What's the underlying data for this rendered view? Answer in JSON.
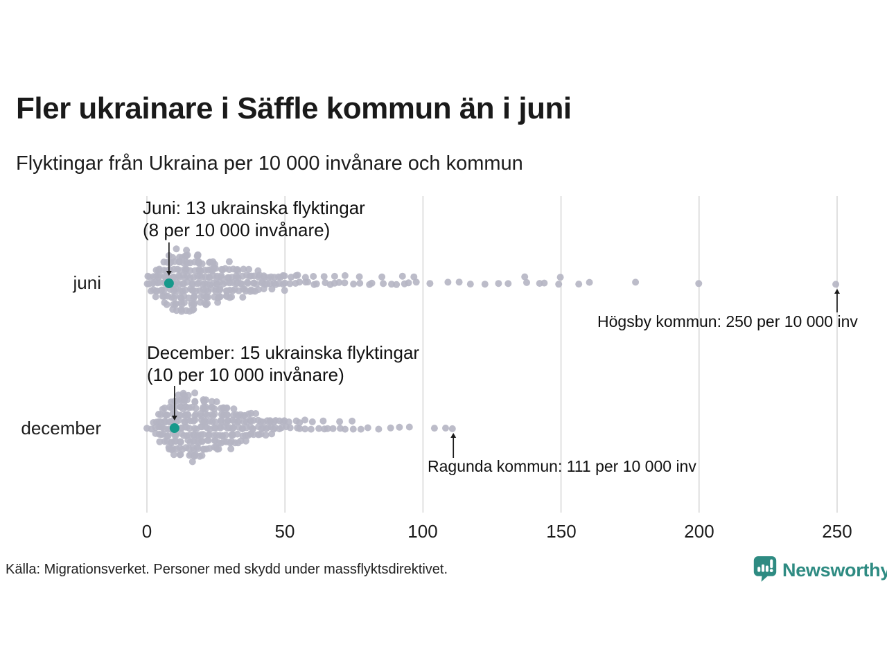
{
  "title": "Fler ukrainare i Säffle kommun än i juni",
  "subtitle": "Flyktingar från Ukraina per 10 000 invånare och kommun",
  "source": "Källa: Migrationsverket. Personer med skydd under massflyktsdirektivet.",
  "logo": {
    "text": "Newsworthy",
    "icon": "newsworthy-speech-bubble-bar-chart-icon",
    "color": "#2e8b82"
  },
  "colors": {
    "dot": "#b5b5c3",
    "highlight": "#17998b",
    "gridline": "#d8d8d8",
    "arrow": "#1a1a1a",
    "text": "#1a1a1a"
  },
  "chart_data": {
    "type": "beeswarm",
    "title": "Fler ukrainare i Säffle kommun än i juni",
    "subtitle": "Flyktingar från Ukraina per 10 000 invånare och kommun",
    "xlabel": "",
    "ylabel": "",
    "xlim": [
      0,
      250
    ],
    "x_ticks": [
      0,
      50,
      100,
      150,
      200,
      250
    ],
    "grid": "vertical",
    "unit": "flyktingar per 10 000 invånare",
    "rows": [
      {
        "label": "juni",
        "annotation": {
          "line1": "Juni: 13 ukrainska flyktingar",
          "line2": "(8 per 10 000 invånare)"
        },
        "highlight": {
          "name": "Säffle kommun",
          "value": 8,
          "refugee_count": 13
        },
        "max_annotation": {
          "text": "Högsby kommun: 250 per 10 000 inv",
          "value": 250
        },
        "bins": [
          [
            0,
            2
          ],
          [
            1,
            3
          ],
          [
            2,
            3
          ],
          [
            3,
            4
          ],
          [
            4,
            5
          ],
          [
            5,
            5
          ],
          [
            6,
            6
          ],
          [
            7,
            7
          ],
          [
            8,
            7
          ],
          [
            9,
            8
          ],
          [
            10,
            9
          ],
          [
            11,
            9
          ],
          [
            12,
            10
          ],
          [
            13,
            9
          ],
          [
            14,
            9
          ],
          [
            15,
            10
          ],
          [
            16,
            9
          ],
          [
            17,
            8
          ],
          [
            18,
            9
          ],
          [
            19,
            8
          ],
          [
            20,
            8
          ],
          [
            21,
            7
          ],
          [
            22,
            7
          ],
          [
            23,
            7
          ],
          [
            24,
            6
          ],
          [
            25,
            7
          ],
          [
            26,
            6
          ],
          [
            27,
            5
          ],
          [
            28,
            5
          ],
          [
            29,
            5
          ],
          [
            30,
            6
          ],
          [
            31,
            5
          ],
          [
            32,
            4
          ],
          [
            33,
            4
          ],
          [
            34,
            4
          ],
          [
            35,
            5
          ],
          [
            36,
            4
          ],
          [
            37,
            3
          ],
          [
            38,
            3
          ],
          [
            39,
            3
          ],
          [
            40,
            4
          ],
          [
            41,
            3
          ],
          [
            42,
            3
          ],
          [
            43,
            2
          ],
          [
            44,
            2
          ],
          [
            45,
            3
          ],
          [
            46,
            2
          ],
          [
            47,
            2
          ],
          [
            48,
            2
          ],
          [
            49,
            2
          ],
          [
            50,
            3
          ],
          [
            52,
            2
          ],
          [
            54,
            2
          ],
          [
            55,
            2
          ],
          [
            57,
            2
          ],
          [
            58,
            1
          ],
          [
            60,
            2
          ],
          [
            62,
            1
          ],
          [
            64,
            2
          ],
          [
            66,
            1
          ],
          [
            68,
            2
          ],
          [
            70,
            1
          ],
          [
            72,
            2
          ],
          [
            75,
            1
          ],
          [
            77,
            2
          ],
          [
            80,
            1
          ],
          [
            82,
            1
          ],
          [
            85,
            2
          ],
          [
            88,
            1
          ],
          [
            90,
            1
          ],
          [
            93,
            2
          ],
          [
            95,
            1
          ],
          [
            97,
            2
          ],
          [
            102,
            1
          ],
          [
            109,
            1
          ],
          [
            113,
            1
          ],
          [
            117,
            1
          ],
          [
            122,
            1
          ],
          [
            127,
            1
          ],
          [
            131,
            1
          ],
          [
            137,
            2
          ],
          [
            142,
            1
          ],
          [
            144,
            1
          ],
          [
            149,
            2
          ],
          [
            157,
            1
          ],
          [
            160,
            1
          ],
          [
            177,
            1
          ],
          [
            200,
            1
          ],
          [
            250,
            1
          ]
        ]
      },
      {
        "label": "december",
        "annotation": {
          "line1": "December: 15 ukrainska flyktingar",
          "line2": "(10 per 10 000 invånare)"
        },
        "highlight": {
          "name": "Säffle kommun",
          "value": 10,
          "refugee_count": 15
        },
        "max_annotation": {
          "text": "Ragunda kommun: 111 per 10 000 inv",
          "value": 111
        },
        "bins": [
          [
            0,
            1
          ],
          [
            2,
            2
          ],
          [
            3,
            3
          ],
          [
            4,
            4
          ],
          [
            5,
            5
          ],
          [
            6,
            6
          ],
          [
            7,
            7
          ],
          [
            8,
            7
          ],
          [
            9,
            8
          ],
          [
            10,
            8
          ],
          [
            11,
            9
          ],
          [
            12,
            10
          ],
          [
            13,
            10
          ],
          [
            14,
            10
          ],
          [
            15,
            11
          ],
          [
            16,
            10
          ],
          [
            17,
            9
          ],
          [
            18,
            10
          ],
          [
            19,
            9
          ],
          [
            20,
            9
          ],
          [
            21,
            8
          ],
          [
            22,
            8
          ],
          [
            23,
            8
          ],
          [
            24,
            7
          ],
          [
            25,
            8
          ],
          [
            26,
            7
          ],
          [
            27,
            7
          ],
          [
            28,
            6
          ],
          [
            29,
            6
          ],
          [
            30,
            7
          ],
          [
            31,
            6
          ],
          [
            32,
            5
          ],
          [
            33,
            5
          ],
          [
            34,
            5
          ],
          [
            35,
            5
          ],
          [
            36,
            4
          ],
          [
            37,
            4
          ],
          [
            38,
            4
          ],
          [
            39,
            3
          ],
          [
            40,
            4
          ],
          [
            41,
            3
          ],
          [
            42,
            3
          ],
          [
            43,
            3
          ],
          [
            44,
            2
          ],
          [
            45,
            3
          ],
          [
            46,
            2
          ],
          [
            47,
            2
          ],
          [
            48,
            2
          ],
          [
            49,
            2
          ],
          [
            50,
            2
          ],
          [
            52,
            2
          ],
          [
            54,
            2
          ],
          [
            55,
            2
          ],
          [
            57,
            2
          ],
          [
            60,
            2
          ],
          [
            62,
            1
          ],
          [
            64,
            2
          ],
          [
            66,
            1
          ],
          [
            68,
            1
          ],
          [
            70,
            2
          ],
          [
            72,
            1
          ],
          [
            75,
            2
          ],
          [
            78,
            1
          ],
          [
            80,
            1
          ],
          [
            84,
            1
          ],
          [
            88,
            1
          ],
          [
            91,
            1
          ],
          [
            95,
            1
          ],
          [
            104,
            1
          ],
          [
            108,
            1
          ],
          [
            111,
            1
          ]
        ]
      }
    ]
  }
}
